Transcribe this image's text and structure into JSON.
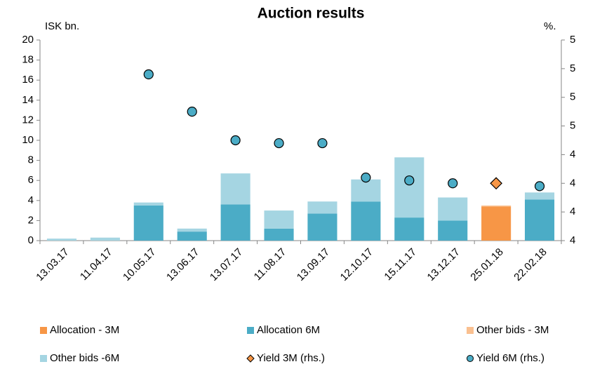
{
  "chart_data": {
    "type": "bar",
    "title": "Auction results",
    "y_label": "ISK bn.",
    "y2_label": "%.",
    "categories": [
      "13.03.17",
      "11.04.17",
      "10.05.17",
      "13.06.17",
      "13.07.17",
      "11.08.17",
      "13.09.17",
      "12.10.17",
      "15.11.17",
      "13.12.17",
      "25.01.18",
      "22.02.18"
    ],
    "series": [
      {
        "name": "Allocation - 3M",
        "type": "bar",
        "color": "#f79646",
        "values": [
          0,
          0,
          0,
          0,
          0,
          0,
          0,
          0,
          0,
          0,
          3.4,
          0
        ]
      },
      {
        "name": "Allocation 6M",
        "type": "bar",
        "color": "#4bacc6",
        "values": [
          0,
          0,
          3.5,
          0.9,
          3.6,
          1.2,
          2.7,
          3.9,
          2.3,
          2.0,
          0,
          4.1
        ]
      },
      {
        "name": "Other bids - 3M",
        "type": "bar",
        "color": "#fac090",
        "values": [
          0,
          0,
          0,
          0,
          0,
          0,
          0,
          0,
          0,
          0,
          0.1,
          0
        ]
      },
      {
        "name": "Other bids -6M",
        "type": "bar",
        "color": "#a5d5e2",
        "values": [
          0.2,
          0.3,
          0.3,
          0.3,
          3.1,
          1.8,
          1.2,
          2.2,
          6.0,
          2.3,
          0,
          0.7
        ]
      },
      {
        "name": "Yield 3M (rhs.)",
        "type": "marker",
        "marker": "diamond",
        "axis": "y2",
        "color": "#f79646",
        "values": [
          null,
          null,
          null,
          null,
          null,
          null,
          null,
          null,
          null,
          null,
          4.3,
          null
        ]
      },
      {
        "name": "Yield 6M (rhs.)",
        "type": "marker",
        "marker": "circle",
        "axis": "y2",
        "color": "#4bacc6",
        "values": [
          null,
          null,
          4.68,
          4.55,
          4.45,
          4.44,
          4.44,
          4.32,
          4.31,
          4.3,
          null,
          4.29
        ]
      }
    ],
    "ylim": [
      0,
      20
    ],
    "yticks": [
      0,
      2,
      4,
      6,
      8,
      10,
      12,
      14,
      16,
      18,
      20
    ],
    "y2lim": [
      4.1,
      4.8
    ],
    "y2ticks": [
      {
        "value": 4.1,
        "label": "4"
      },
      {
        "value": 4.2,
        "label": "4"
      },
      {
        "value": 4.3,
        "label": "4"
      },
      {
        "value": 4.4,
        "label": "4"
      },
      {
        "value": 4.5,
        "label": "5"
      },
      {
        "value": 4.6,
        "label": "5"
      },
      {
        "value": 4.7,
        "label": "5"
      },
      {
        "value": 4.8,
        "label": "5"
      }
    ],
    "grid": false,
    "legend": "bottom"
  }
}
